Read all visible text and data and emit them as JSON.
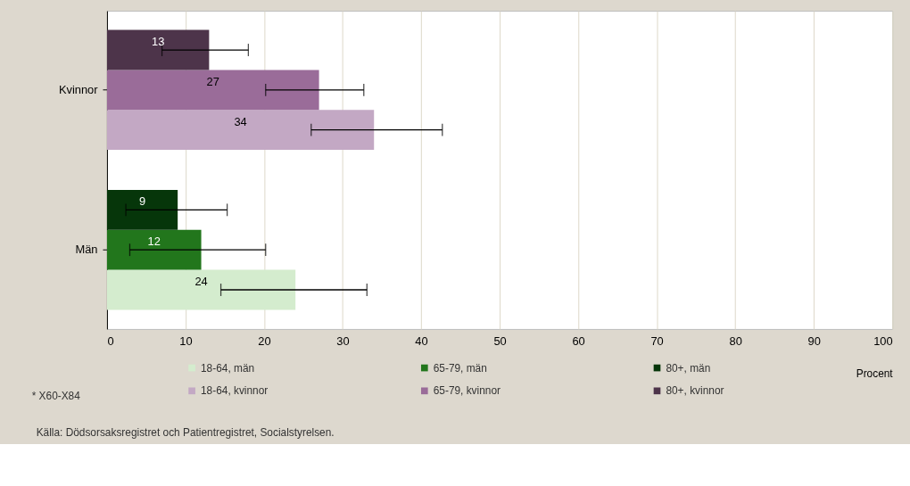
{
  "chart_data": {
    "type": "bar",
    "orientation": "horizontal",
    "categories": [
      "Kvinnor",
      "Män"
    ],
    "series": [
      {
        "name": "18-64, män",
        "color": "#d4ecce",
        "values": [
          null,
          24
        ],
        "errors": [
          null,
          [
            14.5,
            33.1
          ]
        ]
      },
      {
        "name": "65-79, män",
        "color": "#22761c",
        "values": [
          null,
          12
        ],
        "errors": [
          null,
          [
            2.9,
            20.2
          ]
        ]
      },
      {
        "name": "80+, män",
        "color": "#06360a",
        "values": [
          null,
          9
        ],
        "errors": [
          null,
          [
            2.4,
            15.3
          ]
        ]
      },
      {
        "name": "18-64, kvinnor",
        "color": "#c3a8c4",
        "values": [
          34,
          null
        ],
        "errors": [
          [
            26.0,
            42.7
          ],
          null
        ]
      },
      {
        "name": "65-79, kvinnor",
        "color": "#9a6c99",
        "values": [
          27,
          null
        ],
        "errors": [
          [
            20.2,
            32.7
          ],
          null
        ]
      },
      {
        "name": "80+, kvinnor",
        "color": "#4d344a",
        "values": [
          13,
          null
        ],
        "errors": [
          [
            7,
            18
          ],
          null
        ]
      }
    ],
    "xlim": [
      0,
      100
    ],
    "xticks": [
      0,
      10,
      20,
      30,
      40,
      50,
      60,
      70,
      80,
      90,
      100
    ],
    "xlabel": "Procent",
    "grid": "x",
    "legend": "bottom",
    "data_labels": true,
    "annotations": [
      "* X60-X84",
      "Källa: Dödsorsaksregistret och Patientregistret, Socialstyrelsen."
    ]
  }
}
